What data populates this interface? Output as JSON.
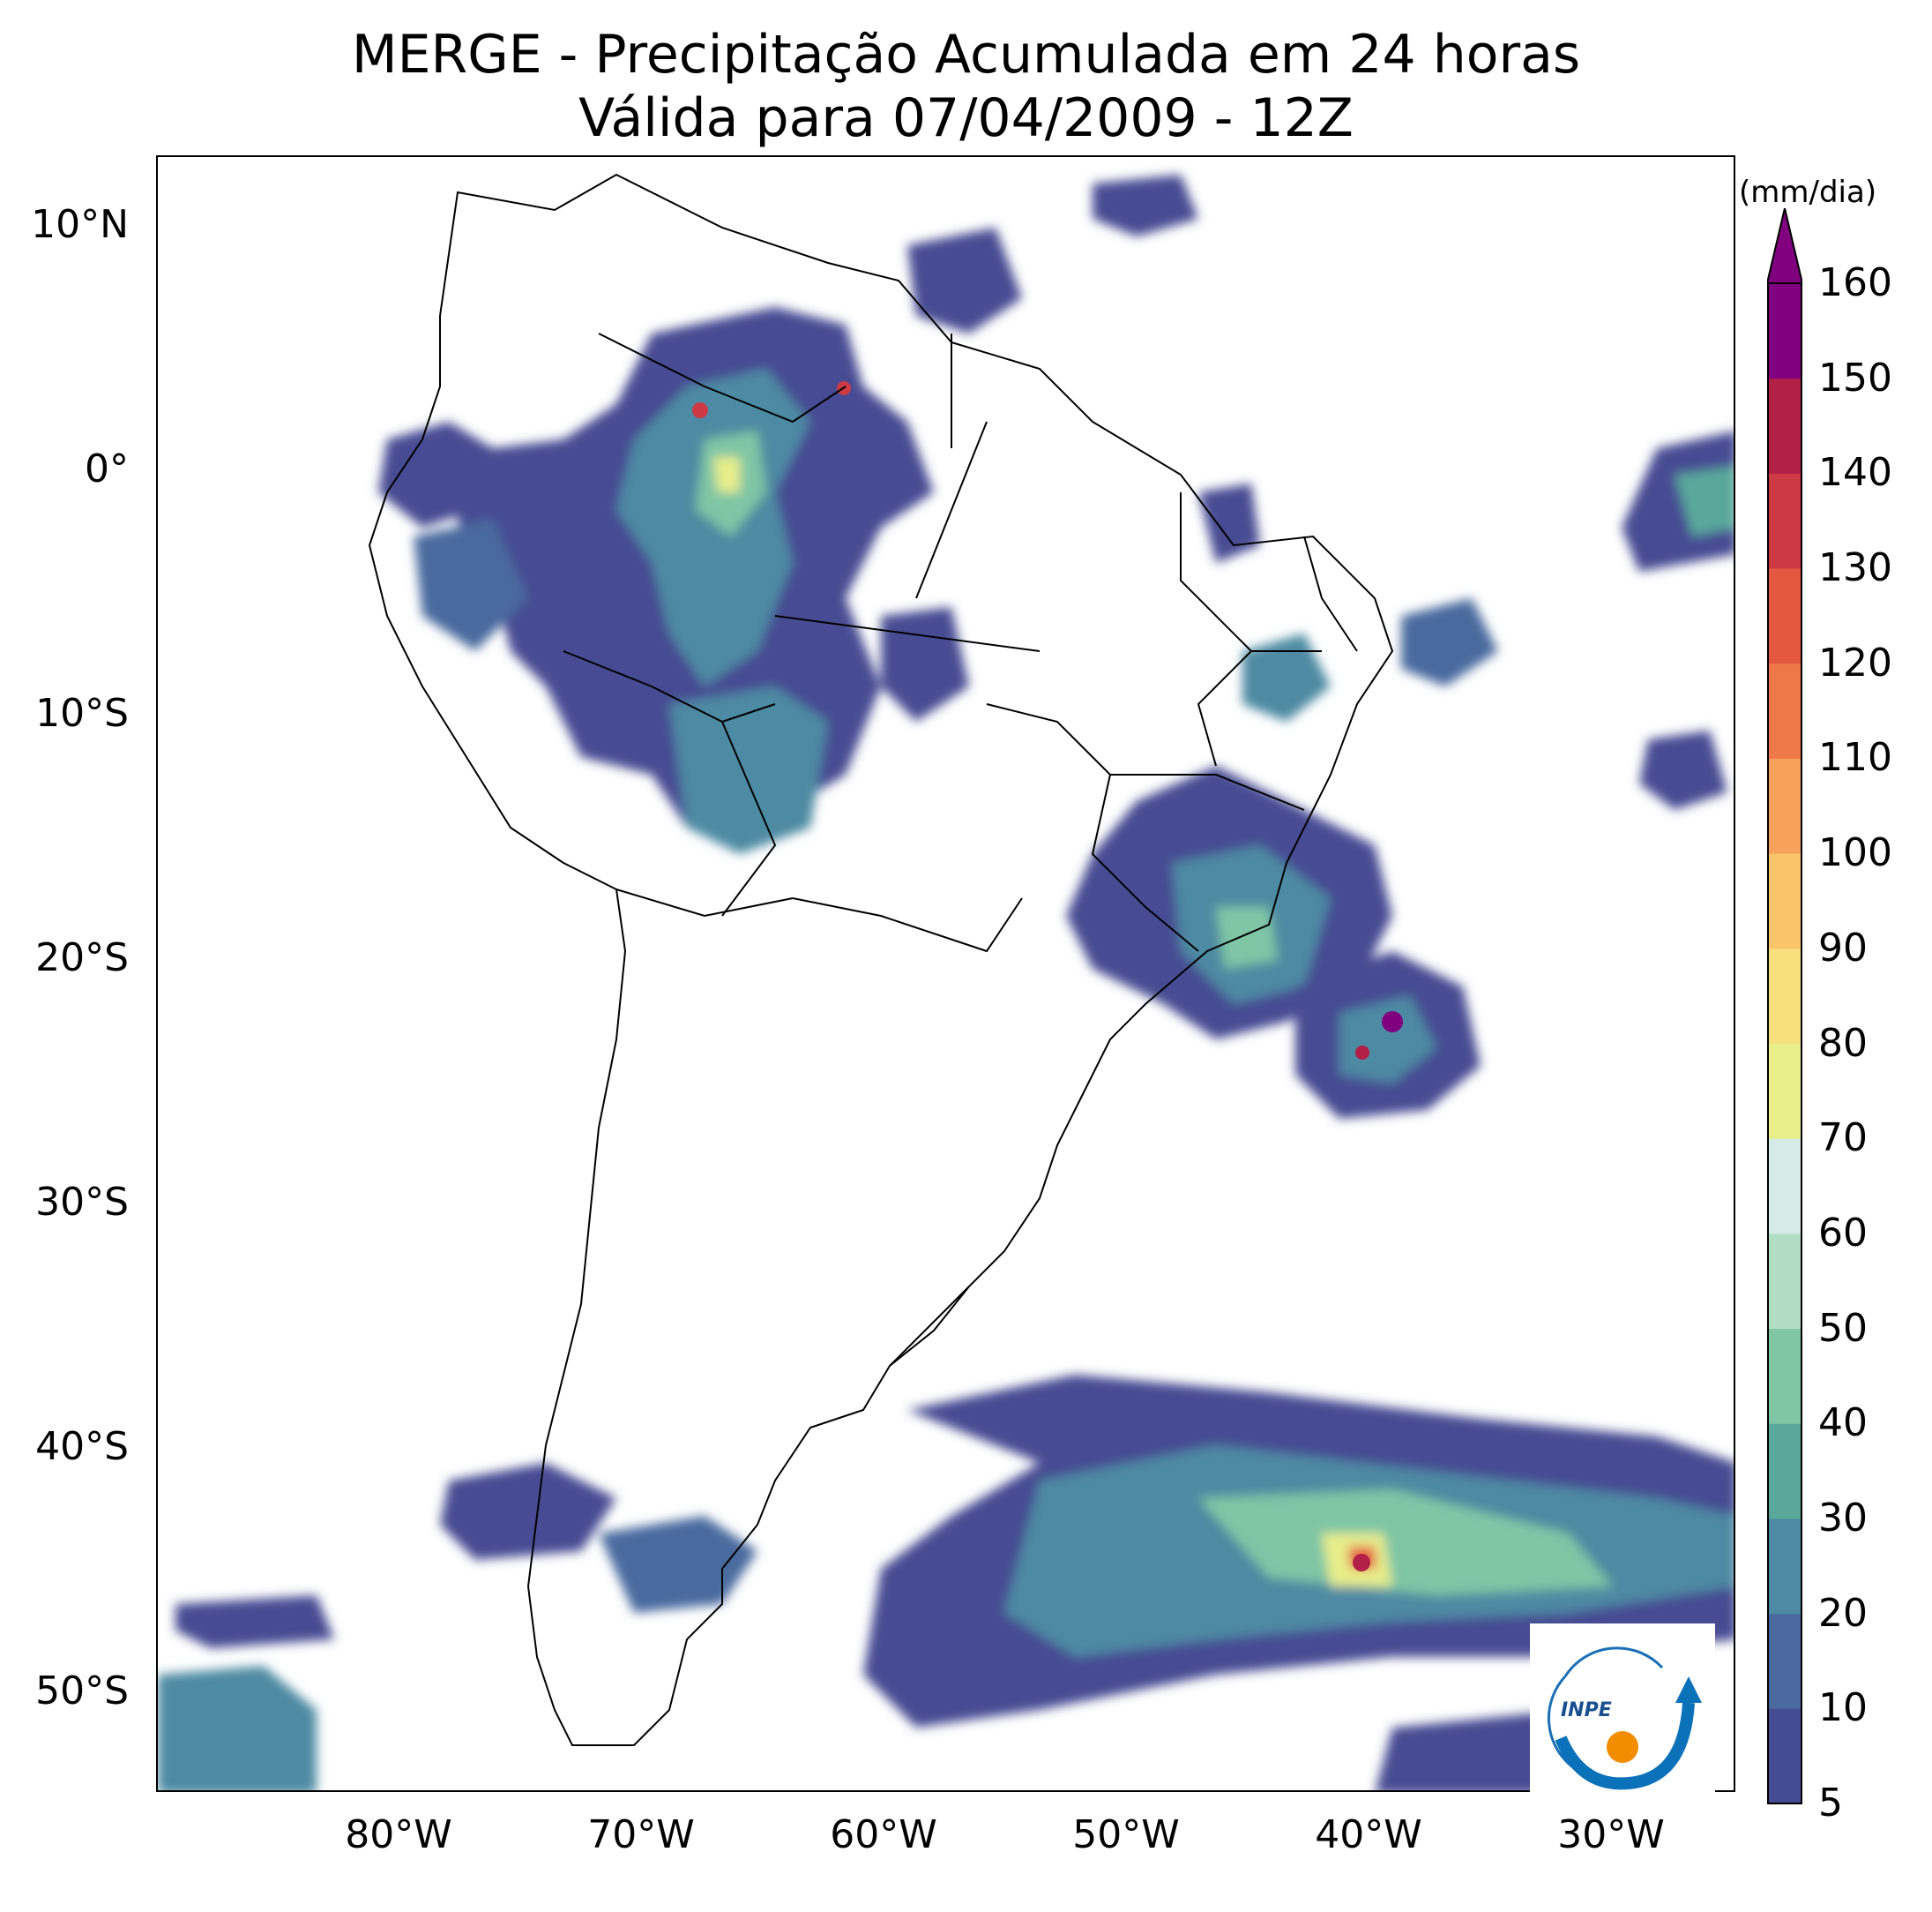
{
  "title": {
    "line1": "MERGE - Precipitação Acumulada em 24 horas",
    "line2": "Válida para 07/04/2009 - 12Z"
  },
  "map": {
    "lat_labels": [
      "10°N",
      "0°",
      "10°S",
      "20°S",
      "30°S",
      "40°S",
      "50°S"
    ],
    "lon_labels": [
      "80°W",
      "70°W",
      "60°W",
      "50°W",
      "40°W",
      "30°W"
    ]
  },
  "colorbar": {
    "unit": "(mm/dia)",
    "ticks": [
      "5",
      "10",
      "20",
      "30",
      "40",
      "50",
      "60",
      "70",
      "80",
      "90",
      "100",
      "110",
      "120",
      "130",
      "140",
      "150",
      "160"
    ],
    "colors": [
      "#464c93",
      "#4a6a9f",
      "#4d8aa3",
      "#5aa89b",
      "#7fc6a5",
      "#b2ddc5",
      "#d6ebe5",
      "#e8ee8a",
      "#f6df7c",
      "#f9c46a",
      "#f6a25b",
      "#ef7848",
      "#e45740",
      "#cd3a44",
      "#b22047",
      "#800080"
    ]
  },
  "logo": {
    "text": "INPE"
  }
}
